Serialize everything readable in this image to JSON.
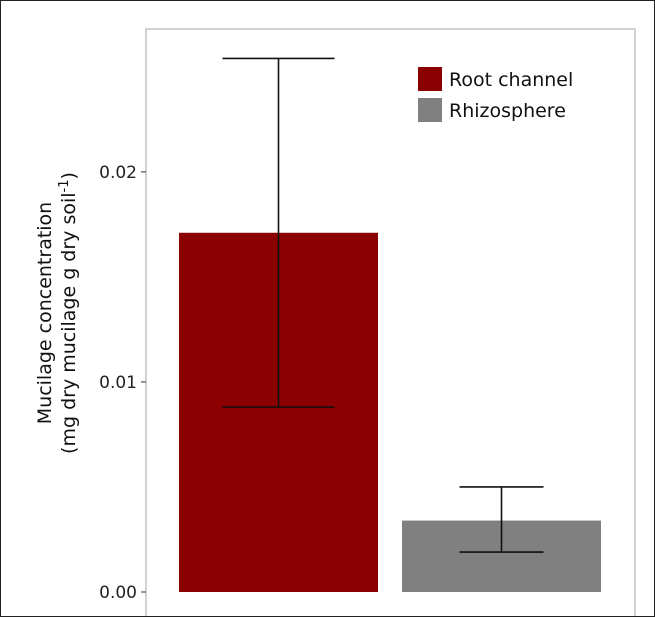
{
  "chart_data": {
    "type": "bar",
    "categories": [
      "Root channel",
      "Rhizosphere"
    ],
    "values": [
      0.0171,
      0.0034
    ],
    "error_low": [
      0.0088,
      0.0019
    ],
    "error_high": [
      0.0254,
      0.005
    ],
    "ylim": [
      0,
      0.0268
    ],
    "yticks": [
      0,
      0.01,
      0.02
    ],
    "ytick_labels": [
      "0.00",
      "0.01",
      "0.02"
    ],
    "ylabel_line1": "Mucilage concentration",
    "ylabel_line2_main": "(mg dry mucilage g dry soil",
    "ylabel_line2_sup": "-1",
    "ylabel_line2_end": ")",
    "colors": [
      "#8b0000",
      "#808080"
    ],
    "legend": {
      "position": "top-right",
      "entries": [
        {
          "label": "Root channel",
          "color": "#8b0000"
        },
        {
          "label": "Rhizosphere",
          "color": "#808080"
        }
      ]
    },
    "grid": false
  }
}
